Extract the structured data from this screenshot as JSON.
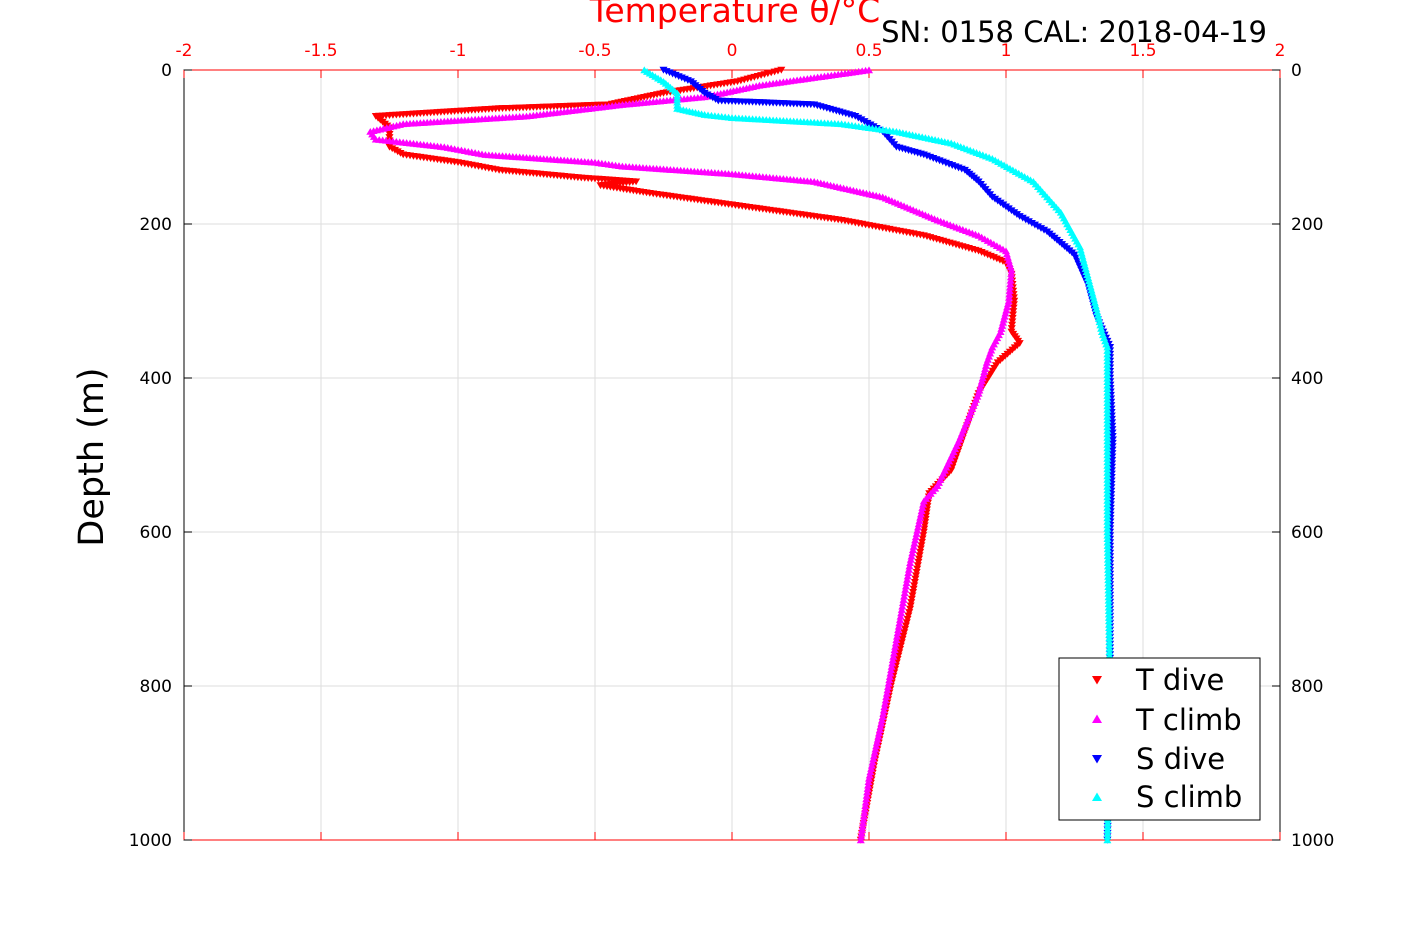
{
  "chart_data": {
    "type": "scatter",
    "title": "Temperature θ/°C",
    "subtitle": "SN: 0158  CAL: 2018-04-19",
    "xlabel": "Temperature θ/°C",
    "ylabel": "Depth (m)",
    "xlim": [
      -2,
      2
    ],
    "ylim": [
      0,
      1000
    ],
    "y_reversed": true,
    "grid": true,
    "legend_position": "bottom-right",
    "x_ticks": [
      "-2",
      "-1.5",
      "-1",
      "-0.5",
      "0",
      "0.5",
      "1",
      "1.5",
      "2"
    ],
    "y_ticks": [
      "0",
      "200",
      "400",
      "600",
      "800",
      "1000"
    ],
    "colors": {
      "axis_top": "#ff0000",
      "axis_default": "#000000",
      "grid": "#dddddd"
    },
    "series": [
      {
        "name": "T dive",
        "marker": "triangle-down",
        "color": "#ff0000",
        "x": [
          0.18,
          0.02,
          -0.25,
          -0.45,
          -0.85,
          -1.3,
          -1.25,
          -1.25,
          -1.2,
          -1.0,
          -0.85,
          -0.55,
          -0.35,
          -0.48,
          -0.3,
          0.0,
          0.4,
          0.7,
          0.9,
          1.0,
          1.02,
          1.03,
          1.02,
          1.05,
          0.97,
          0.9,
          0.85,
          0.8,
          0.72,
          0.7,
          0.65,
          0.58,
          0.52,
          0.47
        ],
        "y": [
          0,
          15,
          30,
          45,
          50,
          60,
          75,
          100,
          110,
          120,
          130,
          140,
          145,
          150,
          160,
          175,
          195,
          215,
          235,
          250,
          265,
          300,
          340,
          355,
          380,
          420,
          470,
          520,
          550,
          600,
          700,
          800,
          900,
          1000
        ]
      },
      {
        "name": "T climb",
        "marker": "triangle-up",
        "color": "#ff00ff",
        "x": [
          0.5,
          0.1,
          -0.1,
          -0.4,
          -0.75,
          -1.2,
          -1.32,
          -1.3,
          -1.05,
          -0.9,
          -0.7,
          -0.5,
          -0.4,
          0.0,
          0.3,
          0.55,
          0.65,
          0.75,
          0.9,
          1.0,
          1.02,
          1.01,
          0.98,
          0.95,
          0.93,
          0.9,
          0.83,
          0.75,
          0.7,
          0.65,
          0.6,
          0.55,
          0.5,
          0.47
        ],
        "y": [
          0,
          20,
          35,
          45,
          60,
          70,
          80,
          90,
          100,
          110,
          115,
          120,
          125,
          135,
          145,
          165,
          180,
          195,
          215,
          235,
          260,
          300,
          340,
          360,
          380,
          420,
          480,
          540,
          560,
          640,
          740,
          840,
          920,
          1000
        ]
      },
      {
        "name": "S dive",
        "marker": "triangle-down",
        "color": "#0000ff",
        "x": [
          -0.25,
          -0.15,
          -0.1,
          -0.05,
          0.1,
          0.3,
          0.45,
          0.55,
          0.6,
          0.7,
          0.85,
          0.9,
          0.95,
          1.05,
          1.15,
          1.25,
          1.3,
          1.33,
          1.38,
          1.38,
          1.39,
          1.38,
          1.38,
          1.37
        ],
        "y": [
          0,
          15,
          30,
          40,
          42,
          45,
          60,
          80,
          100,
          110,
          130,
          145,
          165,
          190,
          210,
          240,
          280,
          320,
          360,
          400,
          480,
          600,
          800,
          1000
        ]
      },
      {
        "name": "S climb",
        "marker": "triangle-up",
        "color": "#00ffff",
        "x": [
          -0.32,
          -0.25,
          -0.2,
          -0.2,
          -0.1,
          0.0,
          0.15,
          0.4,
          0.6,
          0.8,
          0.95,
          1.1,
          1.2,
          1.27,
          1.3,
          1.33,
          1.35,
          1.37,
          1.37,
          1.37,
          1.38,
          1.37
        ],
        "y": [
          0,
          15,
          30,
          50,
          58,
          62,
          65,
          70,
          80,
          95,
          115,
          145,
          185,
          230,
          270,
          310,
          340,
          360,
          450,
          600,
          800,
          1000
        ]
      }
    ]
  }
}
